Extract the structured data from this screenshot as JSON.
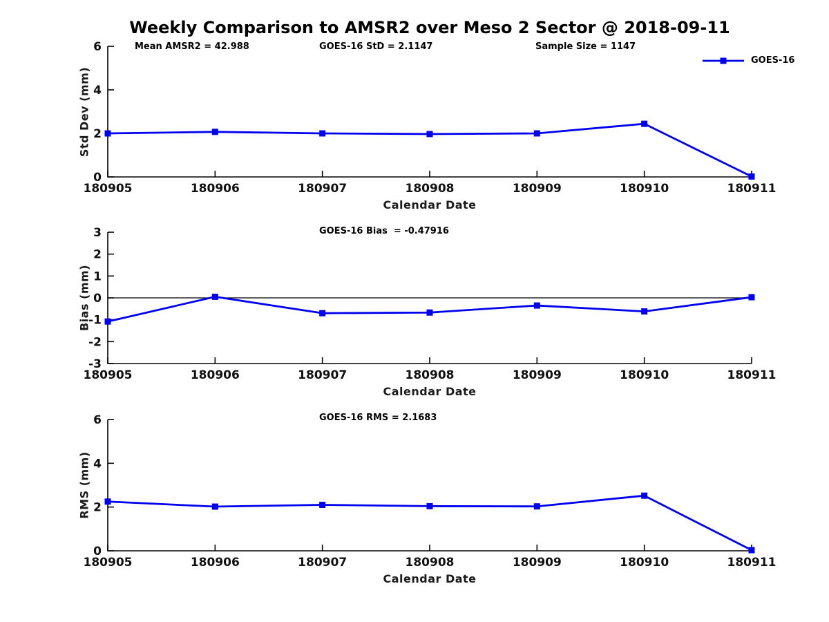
{
  "figure": {
    "title": "Weekly Comparison to AMSR2 over Meso 2 Sector @ 2018-09-11",
    "stats": {
      "mean_amsr2": "Mean AMSR2 = 42.988",
      "goes16_std": "GOES-16 StD = 2.1147",
      "sample_size": "Sample Size = 1147"
    },
    "legend": {
      "label": "GOES-16"
    },
    "line_color": "#0000EE",
    "axis_color": "#000000"
  },
  "chart_data": [
    {
      "id": "stddev",
      "type": "line",
      "ylabel": "Std Dev (mm)",
      "xlabel": "Calendar Date",
      "annotation": "",
      "categories": [
        "180905",
        "180906",
        "180907",
        "180908",
        "180909",
        "180910",
        "180911"
      ],
      "series": [
        {
          "name": "GOES-16",
          "values": [
            2.0,
            2.07,
            2.0,
            1.97,
            2.0,
            2.44,
            0.02
          ]
        }
      ],
      "ylim": [
        0,
        6
      ],
      "yticks": [
        0,
        2,
        4,
        6
      ],
      "zero_line": false,
      "grid": false,
      "legend_position": "top-right"
    },
    {
      "id": "bias",
      "type": "line",
      "ylabel": "Bias (mm)",
      "xlabel": "Calendar Date",
      "annotation": "GOES-16 Bias  = -0.47916",
      "categories": [
        "180905",
        "180906",
        "180907",
        "180908",
        "180909",
        "180910",
        "180911"
      ],
      "series": [
        {
          "name": "GOES-16",
          "values": [
            -1.08,
            0.05,
            -0.7,
            -0.67,
            -0.35,
            -0.62,
            0.03
          ]
        }
      ],
      "ylim": [
        -3,
        3
      ],
      "yticks": [
        -3,
        -2,
        -1,
        0,
        1,
        2,
        3
      ],
      "zero_line": true,
      "grid": false
    },
    {
      "id": "rms",
      "type": "line",
      "ylabel": "RMS (mm)",
      "xlabel": "Calendar Date",
      "annotation": "GOES-16 RMS = 2.1683",
      "categories": [
        "180905",
        "180906",
        "180907",
        "180908",
        "180909",
        "180910",
        "180911"
      ],
      "series": [
        {
          "name": "GOES-16",
          "values": [
            2.25,
            2.02,
            2.1,
            2.04,
            2.03,
            2.52,
            0.03
          ]
        }
      ],
      "ylim": [
        0,
        6
      ],
      "yticks": [
        0,
        2,
        4,
        6
      ],
      "zero_line": false,
      "grid": false
    }
  ]
}
